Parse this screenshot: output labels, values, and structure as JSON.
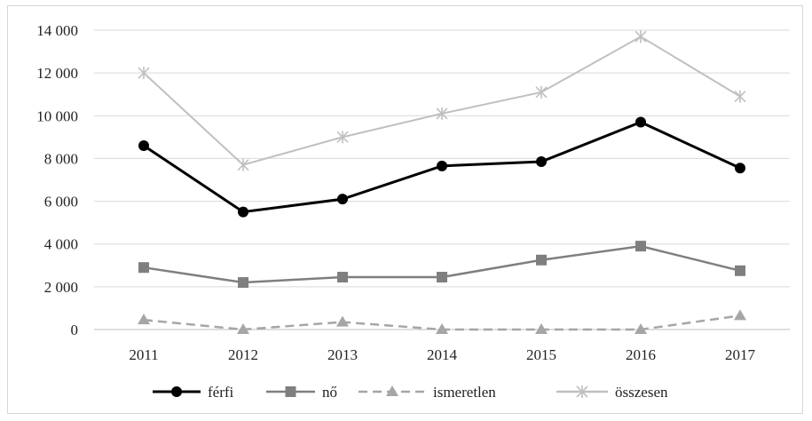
{
  "chart_data": {
    "type": "line",
    "title": "",
    "xlabel": "",
    "ylabel": "",
    "categories": [
      "2011",
      "2012",
      "2013",
      "2014",
      "2015",
      "2016",
      "2017"
    ],
    "ylim": [
      0,
      14000
    ],
    "yticks": [
      0,
      2000,
      4000,
      6000,
      8000,
      10000,
      12000,
      14000
    ],
    "ytick_labels": [
      "0",
      "2 000",
      "4 000",
      "6 000",
      "8 000",
      "10 000",
      "12 000",
      "14 000"
    ],
    "grid": true,
    "legend_position": "bottom",
    "series": [
      {
        "name": "férfi",
        "values": [
          8600,
          5500,
          6100,
          7650,
          7850,
          9700,
          7550
        ],
        "color": "#000000",
        "marker": "circle",
        "dash": "solid"
      },
      {
        "name": "nő",
        "values": [
          2900,
          2200,
          2450,
          2450,
          3250,
          3900,
          2750
        ],
        "color": "#7f7f7f",
        "marker": "square",
        "dash": "solid"
      },
      {
        "name": "ismeretlen",
        "values": [
          450,
          0,
          350,
          0,
          0,
          0,
          650
        ],
        "color": "#a6a6a6",
        "marker": "triangle",
        "dash": "dashed"
      },
      {
        "name": "összesen",
        "values": [
          12000,
          7700,
          9000,
          10100,
          11100,
          13700,
          10900
        ],
        "color": "#c0c0c0",
        "marker": "cross",
        "dash": "solid"
      }
    ]
  }
}
